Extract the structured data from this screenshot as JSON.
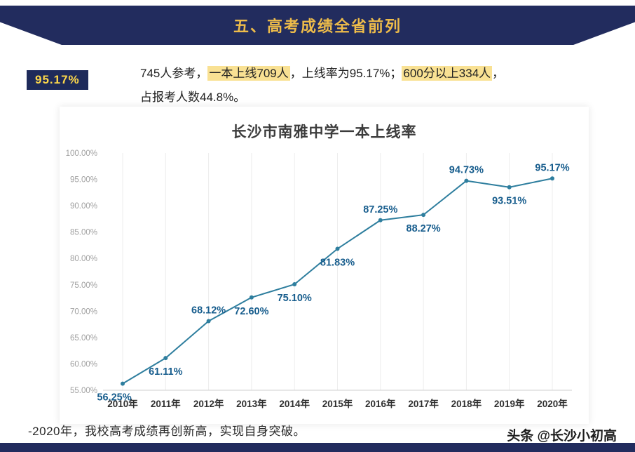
{
  "banner": {
    "title": "五、高考成绩全省前列"
  },
  "badge": {
    "value": "95.17%"
  },
  "summary": {
    "seg1": "745人参考，",
    "seg2": "一本上线709人",
    "seg3": "，上线率为95.17%；",
    "seg4": "600分以上334人",
    "seg5": "，",
    "line2": "占报考人数44.8%。"
  },
  "chart_data": {
    "type": "line",
    "title": "长沙市南雅中学一本上线率",
    "categories": [
      "2010年",
      "2011年",
      "2012年",
      "2013年",
      "2014年",
      "2015年",
      "2016年",
      "2017年",
      "2018年",
      "2019年",
      "2020年"
    ],
    "values": [
      56.25,
      61.11,
      68.12,
      72.6,
      75.1,
      81.83,
      87.25,
      88.27,
      94.73,
      93.51,
      95.17
    ],
    "point_labels": [
      "56.25%",
      "61.11%",
      "68.12%",
      "72.60%",
      "75.10%",
      "81.83%",
      "87.25%",
      "88.27%",
      "94.73%",
      "93.51%",
      "95.17%"
    ],
    "label_positions": [
      "below",
      "below",
      "above",
      "below",
      "below",
      "below",
      "above",
      "below",
      "above",
      "below",
      "above"
    ],
    "ylim": [
      55,
      100
    ],
    "ytick_step": 5,
    "ytick_labels": [
      "100.00%",
      "95.00%",
      "90.00%",
      "85.00%",
      "80.00%",
      "75.00%",
      "70.00%",
      "65.00%",
      "60.00%",
      "55.00%"
    ],
    "grid": "vertical",
    "legend": "none",
    "line_color": "#2e7e9e",
    "marker_color": "#2e7e9e",
    "data_label_color": "#175d8d",
    "xtick_color": "#2f2f2f",
    "ytick_color": "#a0a0a0"
  },
  "footer": {
    "note": "-2020年，我校高考成绩再创新高，实现自身突破。",
    "watermark": "头条 @长沙小初高"
  },
  "colors": {
    "banner_bg": "#222c5e",
    "banner_text": "#eebc4a",
    "highlight": "#f9e193",
    "badge_bg": "#1e2a5a",
    "badge_text": "#ffd94a"
  }
}
